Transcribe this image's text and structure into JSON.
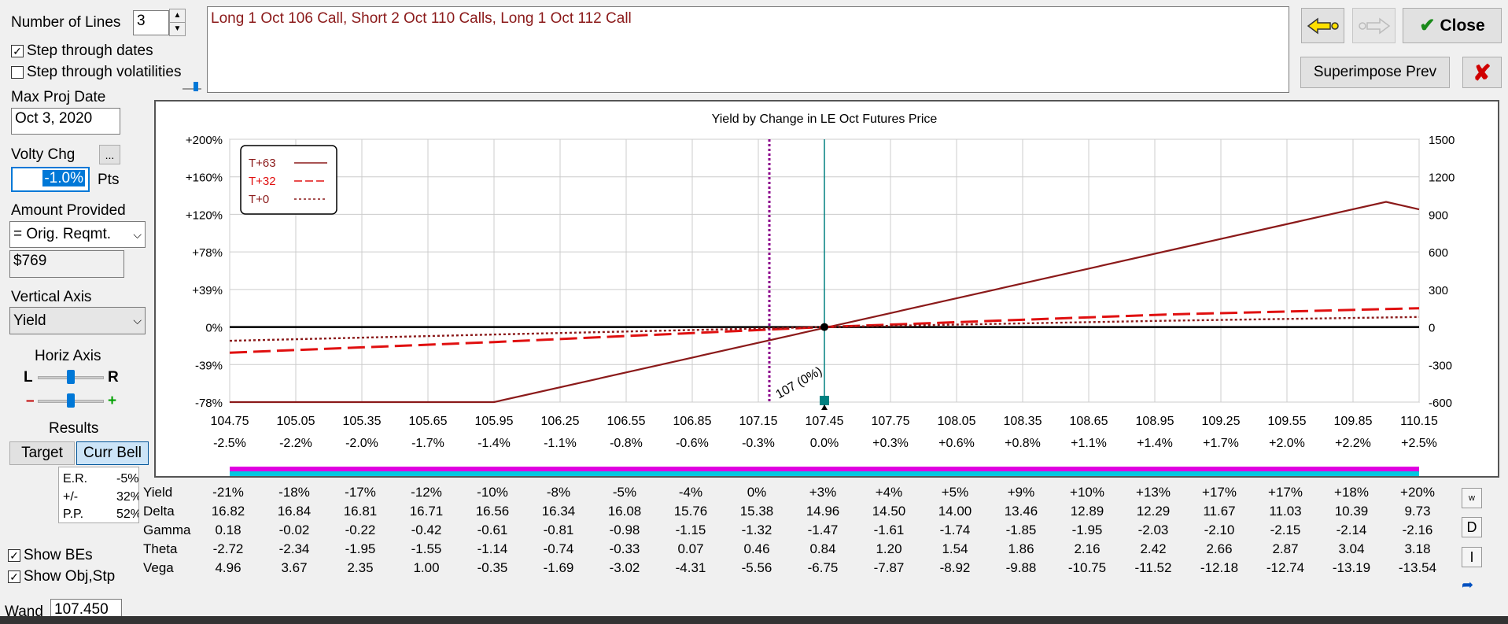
{
  "left": {
    "num_lines_label": "Number of Lines",
    "num_lines_value": "3",
    "step_dates_label": "Step through dates",
    "step_vol_label": "Step through volatilities",
    "max_proj_label": "Max Proj Date",
    "max_proj_value": "Oct 3, 2020",
    "volty_label": "Volty Chg",
    "volty_btn": "...",
    "volty_value": "-1.0%",
    "pts_label": "Pts",
    "amount_label": "Amount Provided",
    "amount_value": "= Orig. Reqmt.",
    "amount_money": "$769",
    "vaxis_label": "Vertical Axis",
    "vaxis_value": "Yield",
    "haxis_label": "Horiz Axis",
    "l_label": "L",
    "r_label": "R",
    "minus_label": "–",
    "plus_label": "+",
    "results_label": "Results",
    "target_btn": "Target",
    "currbell_btn": "Curr Bell",
    "er_label": "E.R.",
    "er_value": "-5%",
    "pm_label": "+/-",
    "pm_value": "32%",
    "pp_label": "P.P.",
    "pp_value": "52%",
    "show_bes": "Show BEs",
    "show_obj": "Show Obj,Stp",
    "wand_label": "Wand",
    "wand_value": "107.450"
  },
  "description": "Long 1 Oct 106 Call, Short 2 Oct 110 Calls, Long 1 Oct 112 Call",
  "right": {
    "close_label": "Close",
    "superimpose_label": "Superimpose Prev",
    "side_w": "w",
    "side_d": "D",
    "side_i": "I"
  },
  "colors": {
    "line_t63": "#8b1a1a",
    "line_t32": "#e01010",
    "line_t0": "#8b1a1a",
    "wand": "#008080",
    "be_line": "#8b008b",
    "band_magenta": "#e000e0",
    "band_cyan": "#00c8e0"
  },
  "chart_data": {
    "type": "line",
    "title": "Yield by Change in LE Oct Futures Price",
    "x": [
      104.75,
      105.05,
      105.35,
      105.65,
      105.95,
      106.25,
      106.55,
      106.85,
      107.15,
      107.45,
      107.75,
      108.05,
      108.35,
      108.65,
      108.95,
      109.25,
      109.55,
      109.85,
      110.15
    ],
    "x_pct": [
      "-2.5%",
      "-2.2%",
      "-2.0%",
      "-1.7%",
      "-1.4%",
      "-1.1%",
      "-0.8%",
      "-0.6%",
      "-0.3%",
      "0.0%",
      "+0.3%",
      "+0.6%",
      "+0.8%",
      "+1.1%",
      "+1.4%",
      "+1.7%",
      "+2.0%",
      "+2.2%",
      "+2.5%"
    ],
    "y_left_ticks": [
      "+200%",
      "+160%",
      "+120%",
      "+78%",
      "+39%",
      "0%",
      "-39%",
      "-78%"
    ],
    "y_right_ticks": [
      "1500",
      "1200",
      "900",
      "600",
      "300",
      "0",
      "-300",
      "-600"
    ],
    "ylim_right": [
      -600,
      1500
    ],
    "xlim": [
      104.75,
      110.15
    ],
    "grid": true,
    "legend_position": "top-left",
    "series": [
      {
        "name": "T+63",
        "style": "solid",
        "x": [
          104.75,
          105.95,
          110.0,
          110.15
        ],
        "y": [
          -600,
          -600,
          1000,
          940
        ]
      },
      {
        "name": "T+32",
        "style": "long-dash",
        "x": [
          104.75,
          105.95,
          107.45,
          109.0,
          110.15
        ],
        "y": [
          -205,
          -120,
          0,
          100,
          150
        ]
      },
      {
        "name": "T+0",
        "style": "dotted",
        "x": [
          104.75,
          105.95,
          107.45,
          109.0,
          110.15
        ],
        "y": [
          -110,
          -60,
          0,
          50,
          80
        ]
      }
    ],
    "annotations": {
      "breakeven_x": 107.2,
      "breakeven_label": "107 (0%)",
      "wand_x": 107.45
    },
    "table": {
      "row_labels": [
        "Yield",
        "Delta",
        "Gamma",
        "Theta",
        "Vega"
      ],
      "rows": [
        [
          "-21%",
          "-18%",
          "-17%",
          "-12%",
          "-10%",
          "-8%",
          "-5%",
          "-4%",
          "0%",
          "+3%",
          "+4%",
          "+5%",
          "+9%",
          "+10%",
          "+13%",
          "+17%",
          "+17%",
          "+18%",
          "+20%"
        ],
        [
          "16.82",
          "16.84",
          "16.81",
          "16.71",
          "16.56",
          "16.34",
          "16.08",
          "15.76",
          "15.38",
          "14.96",
          "14.50",
          "14.00",
          "13.46",
          "12.89",
          "12.29",
          "11.67",
          "11.03",
          "10.39",
          "9.73"
        ],
        [
          "0.18",
          "-0.02",
          "-0.22",
          "-0.42",
          "-0.61",
          "-0.81",
          "-0.98",
          "-1.15",
          "-1.32",
          "-1.47",
          "-1.61",
          "-1.74",
          "-1.85",
          "-1.95",
          "-2.03",
          "-2.10",
          "-2.15",
          "-2.14",
          "-2.16"
        ],
        [
          "-2.72",
          "-2.34",
          "-1.95",
          "-1.55",
          "-1.14",
          "-0.74",
          "-0.33",
          "0.07",
          "0.46",
          "0.84",
          "1.20",
          "1.54",
          "1.86",
          "2.16",
          "2.42",
          "2.66",
          "2.87",
          "3.04",
          "3.18"
        ],
        [
          "4.96",
          "3.67",
          "2.35",
          "1.00",
          "-0.35",
          "-1.69",
          "-3.02",
          "-4.31",
          "-5.56",
          "-6.75",
          "-7.87",
          "-8.92",
          "-9.88",
          "-10.75",
          "-11.52",
          "-12.18",
          "-12.74",
          "-13.19",
          "-13.54"
        ]
      ]
    }
  }
}
